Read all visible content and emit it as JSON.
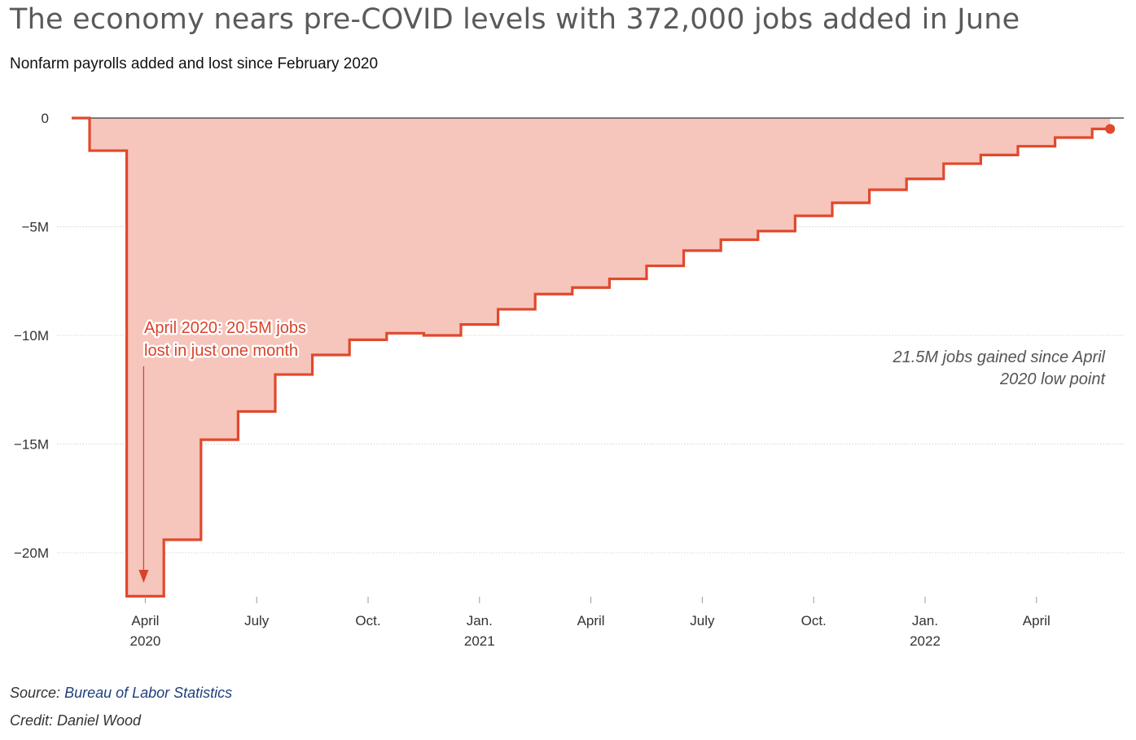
{
  "title": "The economy nears pre-COVID levels with 372,000 jobs added in June",
  "subtitle": "Nonfarm payrolls added and lost since February 2020",
  "footer": {
    "source_label": "Source:",
    "source_link": "Bureau of Labor Statistics",
    "credit": "Credit: Daniel Wood"
  },
  "colors": {
    "line": "#e0492c",
    "fill": "#f6c5bc",
    "annotation": "#d8432a",
    "note": "#555555"
  },
  "chart_data": {
    "type": "area",
    "step": true,
    "x": [
      "2020-02",
      "2020-03",
      "2020-04",
      "2020-05",
      "2020-06",
      "2020-07",
      "2020-08",
      "2020-09",
      "2020-10",
      "2020-11",
      "2020-12",
      "2021-01",
      "2021-02",
      "2021-03",
      "2021-04",
      "2021-05",
      "2021-06",
      "2021-07",
      "2021-08",
      "2021-09",
      "2021-10",
      "2021-11",
      "2021-12",
      "2022-01",
      "2022-02",
      "2022-03",
      "2022-04",
      "2022-05",
      "2022-06"
    ],
    "values": [
      0,
      -1.5,
      -22.0,
      -19.4,
      -14.8,
      -13.5,
      -11.8,
      -10.9,
      -10.2,
      -9.9,
      -10.0,
      -9.5,
      -8.8,
      -8.1,
      -7.8,
      -7.4,
      -6.8,
      -6.1,
      -5.6,
      -5.2,
      -4.5,
      -3.9,
      -3.3,
      -2.8,
      -2.1,
      -1.7,
      -1.3,
      -0.9,
      -0.5
    ],
    "ylim": [
      -22.0,
      0
    ],
    "y_ticks": [
      {
        "value": 0,
        "label": "0"
      },
      {
        "value": -5,
        "label": "−5M"
      },
      {
        "value": -10,
        "label": "−10M"
      },
      {
        "value": -15,
        "label": "−15M"
      },
      {
        "value": -20,
        "label": "−20M"
      }
    ],
    "x_ticks": [
      {
        "month": "2020-04",
        "label": "April",
        "sublabel": "2020"
      },
      {
        "month": "2020-07",
        "label": "July",
        "sublabel": ""
      },
      {
        "month": "2020-10",
        "label": "Oct.",
        "sublabel": ""
      },
      {
        "month": "2021-01",
        "label": "Jan.",
        "sublabel": "2021"
      },
      {
        "month": "2021-04",
        "label": "April",
        "sublabel": ""
      },
      {
        "month": "2021-07",
        "label": "July",
        "sublabel": ""
      },
      {
        "month": "2021-10",
        "label": "Oct.",
        "sublabel": ""
      },
      {
        "month": "2022-01",
        "label": "Jan.",
        "sublabel": "2022"
      },
      {
        "month": "2022-04",
        "label": "April",
        "sublabel": ""
      }
    ],
    "annotations": {
      "low_point": {
        "lines": [
          "April 2020: 20.5M jobs",
          "lost in just one month"
        ],
        "month": "2020-04"
      },
      "recovery": {
        "lines": [
          "21.5M jobs gained since April",
          "2020 low point"
        ]
      }
    }
  }
}
